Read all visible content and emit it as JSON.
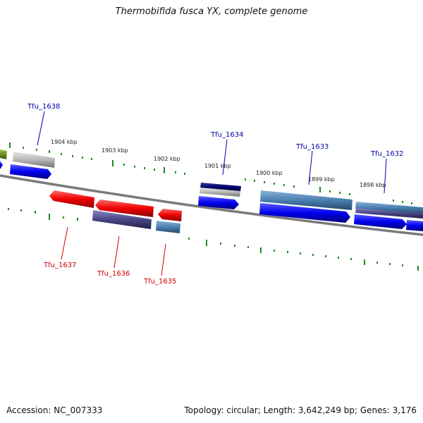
{
  "title": "Thermobifida fusca YX, complete genome",
  "footer": {
    "accession": "Accession: NC_007333",
    "summary": "Topology: circular; Length: 3,642,249 bp; Genes: 3,176"
  },
  "colors": {
    "backbone": "#808080",
    "tick": "#1a8a1a",
    "label_forward": "#0000aa",
    "label_reverse": "#cc0000",
    "cds_blue": "#0000ee",
    "cds_red": "#ee0000",
    "cds_steel": "#4a80b0",
    "cds_purple": "#4a4585",
    "cds_gray": "#b8b8b8",
    "cds_navy": "#00006a",
    "cds_olive": "#6b8e23"
  },
  "kbp_labels": [
    "1904 kbp",
    "1903 kbp",
    "1902 kbp",
    "1901 kbp",
    "1900 kbp",
    "1899 kbp",
    "1898 kbp"
  ],
  "gene_labels": {
    "tfu_1638": "Tfu_1638",
    "tfu_1637": "Tfu_1637",
    "tfu_1636": "Tfu_1636",
    "tfu_1635": "Tfu_1635",
    "tfu_1634": "Tfu_1634",
    "tfu_1633": "Tfu_1633",
    "tfu_1632": "Tfu_1632"
  }
}
